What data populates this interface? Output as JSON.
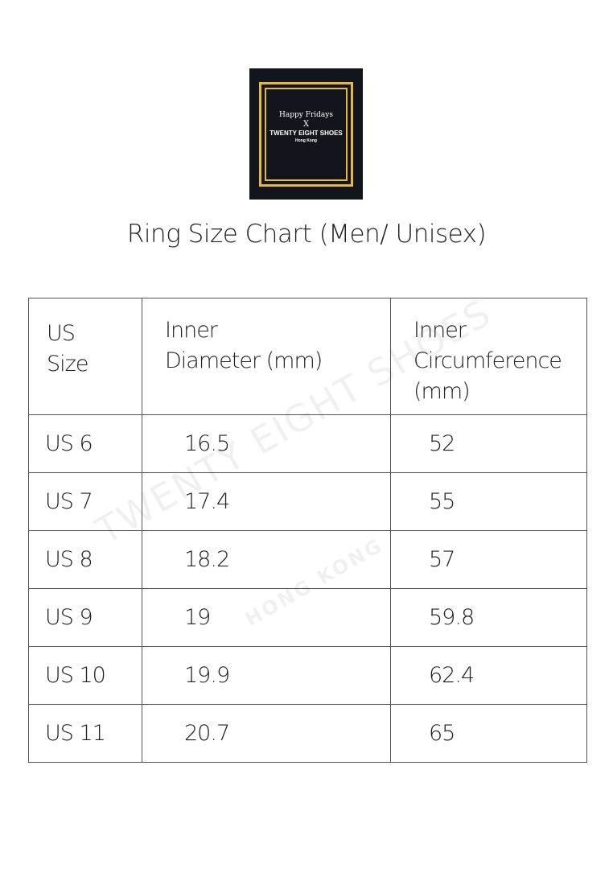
{
  "logo": {
    "line1": "Happy Fridays",
    "line2": "X",
    "line3": "TWENTY EIGHT SHOES",
    "line4": "Hong Kong",
    "frame_color": "#e6b93a",
    "bg_color": "#12161c"
  },
  "title": "Ring Size Chart (Men/ Unisex)",
  "table": {
    "headers": [
      [
        "US",
        "Size"
      ],
      [
        "Inner",
        "Diameter (mm)"
      ],
      [
        "Inner",
        "Circumference (mm)"
      ]
    ],
    "rows": [
      [
        "US 6",
        "16.5",
        "52"
      ],
      [
        "US 7",
        "17.4",
        "55"
      ],
      [
        "US 8",
        "18.2",
        "57"
      ],
      [
        "US 9",
        "19",
        "59.8"
      ],
      [
        "US 10",
        "19.9",
        "62.4"
      ],
      [
        "US 11",
        "20.7",
        "65"
      ]
    ]
  },
  "watermark": {
    "line1": "TWENTY EIGHT SHOES",
    "line2": "HONG KONG"
  }
}
